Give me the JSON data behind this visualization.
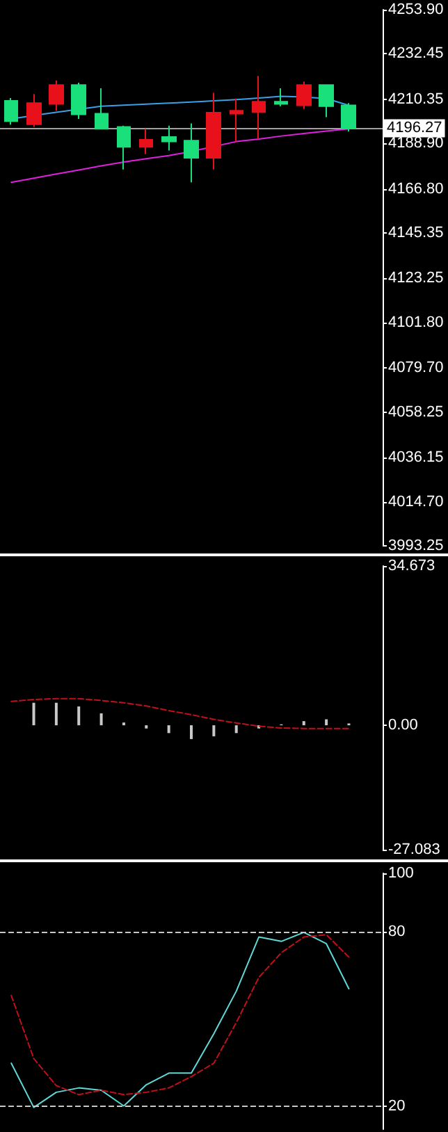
{
  "chart_data": [
    {
      "type": "candlestick",
      "categories": [
        null,
        null,
        null,
        null,
        null,
        null,
        null,
        null,
        null,
        null,
        null,
        null,
        null,
        null,
        null,
        null,
        null
      ],
      "ohlc": [
        [
          4209.6,
          4211,
          4198,
          4199.7
        ],
        [
          4198.2,
          4212.9,
          4196.9,
          4208.5
        ],
        [
          4208.1,
          4219.5,
          4204.8,
          4217.3
        ],
        [
          4217.3,
          4218.4,
          4200.8,
          4203.0
        ],
        [
          4203.4,
          4215.7,
          4196.0,
          4196.0
        ],
        [
          4196.9,
          4197.5,
          4176.2,
          4187.2
        ],
        [
          4187.2,
          4196.0,
          4183.7,
          4190.7
        ],
        [
          4192.0,
          4197.5,
          4185.4,
          4189.8
        ],
        [
          4190.3,
          4198.6,
          4170.0,
          4181.9
        ],
        [
          4181.9,
          4213.5,
          4176.2,
          4203.9
        ],
        [
          4203.4,
          4210.7,
          4189.8,
          4204.8
        ],
        [
          4204.1,
          4221.7,
          4190.9,
          4209.2
        ],
        [
          4209.2,
          4215.7,
          4207.0,
          4208.1
        ],
        [
          4207.4,
          4219.0,
          4205.6,
          4217.3
        ],
        [
          4217.3,
          4217.3,
          4201.7,
          4207.0
        ],
        [
          4207.4,
          4208.5,
          4194.7,
          4196.27
        ],
        null
      ],
      "colors": [
        "#19e07a",
        "#e8101a",
        "#e8101a",
        "#19e07a",
        "#19e07a",
        "#19e07a",
        "#e8101a",
        "#19e07a",
        "#19e07a",
        "#e8101a",
        "#e8101a",
        "#e8101a",
        "#19e07a",
        "#e8101a",
        "#19e07a",
        "#19e07a",
        null
      ],
      "series": [
        {
          "type": "line",
          "color": "#3aa0e8",
          "values": [
            4200.8,
            4202.5,
            4204,
            null,
            4207,
            4207.5,
            4208,
            4208.5,
            4209,
            4209.6,
            4210.2,
            4211,
            4211.8,
            4211.5,
            4210.7,
            4207.4,
            null
          ]
        },
        {
          "type": "line",
          "color": "#e020e0",
          "values": [
            4170,
            4172,
            4174,
            4176,
            4178,
            4179.9,
            4181.5,
            4183,
            4185,
            null,
            4189.8,
            4191,
            4192.5,
            4193.7,
            4194.9,
            4196.0,
            null
          ]
        }
      ],
      "ylim": [
        3993.25,
        4253.9
      ],
      "yticks": [
        {
          "value": 4253.9,
          "label": "4253.90"
        },
        {
          "value": 4232.45,
          "label": "4232.45"
        },
        {
          "value": 4210.35,
          "label": "4210.35"
        },
        {
          "value": 4188.9,
          "label": "4188.90"
        },
        {
          "value": 4166.8,
          "label": "4166.80"
        },
        {
          "value": 4145.35,
          "label": "4145.35"
        },
        {
          "value": 4123.25,
          "label": "4123.25"
        },
        {
          "value": 4101.8,
          "label": "4101.80"
        },
        {
          "value": 4079.7,
          "label": "4079.70"
        },
        {
          "value": 4058.25,
          "label": "4058.25"
        },
        {
          "value": 4036.15,
          "label": "4036.15"
        },
        {
          "value": 4014.7,
          "label": "4014.70"
        },
        {
          "value": 3993.25,
          "label": "3993.25"
        }
      ],
      "ref_lines": [
        {
          "axis": "y",
          "value": 4196.27,
          "label": "4196.27",
          "color": "#a0a0a0"
        }
      ],
      "tick_labels": "y"
    },
    {
      "type": "bar",
      "categories": [
        null,
        null,
        null,
        null,
        null,
        null,
        null,
        null,
        null,
        null,
        null,
        null,
        null,
        null,
        null,
        null,
        null
      ],
      "series": [
        {
          "type": "bar",
          "color": "#c8c8c8",
          "values": [
            null,
            4.9,
            4.9,
            4.1,
            2.6,
            0.6,
            -0.7,
            -1.7,
            -3.0,
            -2.4,
            -1.7,
            -0.7,
            0.2,
            0.9,
            1.3,
            0.4,
            null
          ]
        },
        {
          "type": "line",
          "color": "#c0101a",
          "line_style": "dashed",
          "values": [
            5.2,
            5.6,
            5.8,
            5.8,
            5.4,
            4.9,
            4.2,
            3.2,
            2.3,
            1.3,
            0.5,
            -0.2,
            -0.6,
            -0.7,
            -0.7,
            -0.7,
            null
          ]
        }
      ],
      "ylim": [
        -27.083,
        34.673
      ],
      "yticks": [
        34.673,
        {
          "value": 0,
          "label": "0.00"
        },
        -27.083
      ],
      "tick_labels": "y"
    },
    {
      "type": "line",
      "categories": [
        null,
        null,
        null,
        null,
        null,
        null,
        null,
        null,
        null,
        null,
        null,
        null,
        null,
        null,
        null,
        null,
        null
      ],
      "series": [
        {
          "color": "#5fd8d8",
          "values": [
            34.7,
            19.5,
            24.7,
            26.2,
            25.4,
            20,
            27.3,
            31.3,
            31.3,
            44.8,
            59.5,
            78.1,
            76.6,
            79.7,
            75.8,
            60.3,
            null
          ]
        },
        {
          "color": "#c0101a",
          "line_style": "dashed",
          "values": [
            58,
            36.3,
            27,
            23.9,
            25.4,
            23.9,
            24.7,
            26.2,
            30.1,
            34.7,
            48.7,
            64.2,
            72.7,
            78.1,
            78.9,
            71.2,
            null
          ]
        }
      ],
      "ylim": [
        12,
        100
      ],
      "yticks": [
        100,
        80,
        20
      ],
      "ref_lines": [
        {
          "axis": "y",
          "value": 80,
          "color": "#c8c8c8",
          "line_style": "dashed"
        },
        {
          "axis": "y",
          "value": 20,
          "color": "#c8c8c8",
          "line_style": "dashed"
        }
      ],
      "tick_labels": "y"
    }
  ]
}
